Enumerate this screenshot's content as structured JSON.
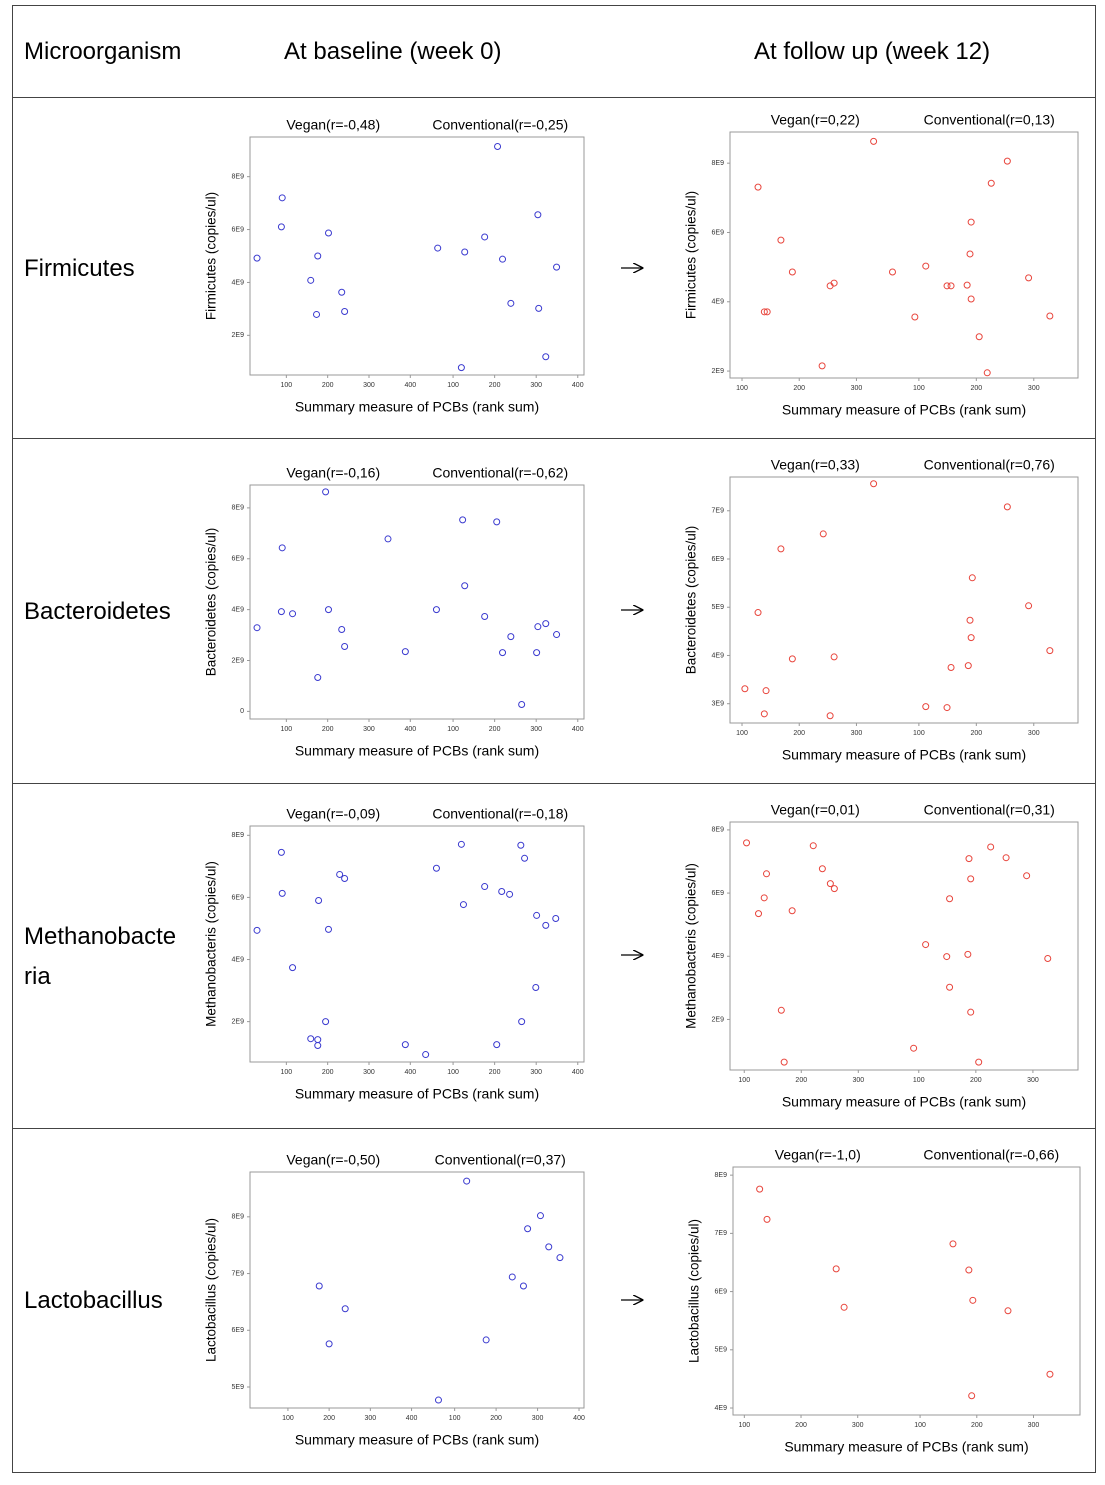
{
  "table": {
    "header": [
      "Microorganism",
      "At baseline (week 0)",
      "At follow up (week 12)"
    ],
    "rows": [
      "Firmicutes",
      "Bacteroidetes",
      "Methanobacteria",
      "Lactobacillus"
    ]
  },
  "chart_data": [
    {
      "type": "scatter",
      "ylabel": "Firmicutes (copies/ul)",
      "xlabel": "Summary measure of PCBs (rank sum)",
      "color": "#3a3acf",
      "ylim": [
        500000000.0,
        9500000000.0
      ],
      "yticks": [
        {
          "value": 2000000000.0,
          "label": "2E9"
        },
        {
          "value": 4000000000.0,
          "label": "4E9"
        },
        {
          "value": 6000000000.0,
          "label": "6E9"
        },
        {
          "value": 8000000000.0,
          "label": "8E9"
        }
      ],
      "panels": [
        {
          "title": "Vegan(r=-0,48)",
          "xlim": [
            12,
            415
          ],
          "xticks": [
            100,
            200,
            300,
            400
          ],
          "x": [
            29,
            90,
            88,
            176,
            202,
            159,
            234,
            173,
            241
          ],
          "y": [
            4920000000.0,
            7200000000.0,
            6100000000.0,
            5000000000.0,
            5870000000.0,
            4080000000.0,
            3630000000.0,
            2790000000.0,
            2900000000.0
          ]
        },
        {
          "title": "Conventional(r=-0,25)",
          "xlim": [
            12,
            415
          ],
          "xticks": [
            100,
            200,
            300,
            400
          ],
          "x": [
            63,
            207,
            128,
            176,
            219,
            304,
            349,
            239,
            306,
            120,
            323
          ],
          "y": [
            5300000000.0,
            9140000000.0,
            5150000000.0,
            5720000000.0,
            4880000000.0,
            6560000000.0,
            4580000000.0,
            3210000000.0,
            3020000000.0,
            780000000.0,
            1190000000.0
          ]
        }
      ]
    },
    {
      "type": "scatter",
      "ylabel": "Firmicutes (copies/ul)",
      "xlabel": "Summary measure of PCBs (rank sum)",
      "color": "#e8453c",
      "ylim": [
        1800000000.0,
        8900000000.0
      ],
      "yticks": [
        {
          "value": 2000000000.0,
          "label": "2E9"
        },
        {
          "value": 4000000000.0,
          "label": "4E9"
        },
        {
          "value": 6000000000.0,
          "label": "6E9"
        },
        {
          "value": 8000000000.0,
          "label": "8E9"
        }
      ],
      "panels": [
        {
          "title": "Vegan(r=0,22)",
          "xlim": [
            79,
            377
          ],
          "xticks": [
            100,
            200,
            300
          ],
          "x": [
            330,
            128,
            168,
            188,
            139,
            144,
            254,
            261,
            363,
            240
          ],
          "y": [
            8630000000.0,
            7310000000.0,
            5780000000.0,
            4860000000.0,
            3710000000.0,
            3710000000.0,
            4460000000.0,
            4540000000.0,
            4860000000.0,
            2150000000.0
          ]
        },
        {
          "title": "Conventional(r=0,13)",
          "xlim": [
            68,
            377
          ],
          "xticks": [
            100,
            200,
            300
          ],
          "x": [
            254,
            226,
            191,
            189,
            112,
            291,
            149,
            156,
            184,
            191,
            93,
            205,
            328,
            219
          ],
          "y": [
            8060000000.0,
            7420000000.0,
            6300000000.0,
            5380000000.0,
            5030000000.0,
            4690000000.0,
            4460000000.0,
            4460000000.0,
            4480000000.0,
            4080000000.0,
            3560000000.0,
            2990000000.0,
            3590000000.0,
            1950000000.0
          ]
        }
      ]
    },
    {
      "type": "scatter",
      "ylabel": "Bacteroidetes  (copies/ul)",
      "xlabel": "Summary measure of PCBs (rank sum)",
      "color": "#3a3acf",
      "ylim": [
        -300000000.0,
        8900000000.0
      ],
      "yticks": [
        0,
        {
          "value": 2000000000.0,
          "label": "2E9"
        },
        {
          "value": 4000000000.0,
          "label": "4E9"
        },
        {
          "value": 6000000000.0,
          "label": "6E9"
        },
        {
          "value": 8000000000.0,
          "label": "8E9"
        }
      ],
      "panels": [
        {
          "title": "Vegan(r=-0,16)",
          "xlim": [
            12,
            415
          ],
          "xticks": [
            100,
            200,
            300,
            400
          ],
          "x": [
            29,
            195,
            90,
            88,
            115,
            202,
            346,
            234,
            241,
            388,
            176
          ],
          "y": [
            3290000000.0,
            8630000000.0,
            6430000000.0,
            3920000000.0,
            3840000000.0,
            4000000000.0,
            6780000000.0,
            3220000000.0,
            2550000000.0,
            2350000000.0,
            1330000000.0
          ]
        },
        {
          "title": "Conventional(r=-0,62)",
          "xlim": [
            12,
            415
          ],
          "xticks": [
            100,
            200,
            300,
            400
          ],
          "x": [
            60,
            123,
            205,
            128,
            176,
            239,
            304,
            323,
            349,
            219,
            301,
            265
          ],
          "y": [
            4000000000.0,
            7530000000.0,
            7450000000.0,
            4940000000.0,
            3730000000.0,
            2940000000.0,
            3330000000.0,
            3450000000.0,
            3020000000.0,
            2310000000.0,
            2310000000.0,
            270000000.0
          ]
        }
      ]
    },
    {
      "type": "scatter",
      "ylabel": "Bacteroidetes  (copies/ul)",
      "xlabel": "Summary measure of PCBs (rank sum)",
      "color": "#e8453c",
      "ylim": [
        2600000000.0,
        7700000000.0
      ],
      "yticks": [
        {
          "value": 3000000000.0,
          "label": "3E9"
        },
        {
          "value": 4000000000.0,
          "label": "4E9"
        },
        {
          "value": 5000000000.0,
          "label": "5E9"
        },
        {
          "value": 6000000000.0,
          "label": "6E9"
        },
        {
          "value": 7000000000.0,
          "label": "7E9"
        }
      ],
      "panels": [
        {
          "title": "Vegan(r=0,33)",
          "xlim": [
            79,
            377
          ],
          "xticks": [
            100,
            200,
            300
          ],
          "x": [
            330,
            242,
            168,
            128,
            188,
            261,
            105,
            142,
            139,
            254
          ],
          "y": [
            7560000000.0,
            6520000000.0,
            6210000000.0,
            4890000000.0,
            3930000000.0,
            3970000000.0,
            3310000000.0,
            3270000000.0,
            2790000000.0,
            2750000000.0
          ]
        },
        {
          "title": "Conventional(r=0,76)",
          "xlim": [
            68,
            377
          ],
          "xticks": [
            100,
            200,
            300
          ],
          "x": [
            254,
            193,
            291,
            189,
            191,
            328,
            156,
            186,
            112,
            149
          ],
          "y": [
            7080000000.0,
            5610000000.0,
            5030000000.0,
            4730000000.0,
            4370000000.0,
            4100000000.0,
            3750000000.0,
            3790000000.0,
            2940000000.0,
            2920000000.0
          ]
        }
      ]
    },
    {
      "type": "scatter",
      "ylabel": "Methanobacteris  (copies/ul)",
      "xlabel": "Summary measure of PCBs (rank sum)",
      "color": "#3a3acf",
      "ylim": [
        700000000.0,
        8300000000.0
      ],
      "yticks": [
        {
          "value": 2000000000.0,
          "label": "2E9"
        },
        {
          "value": 4000000000.0,
          "label": "4E9"
        },
        {
          "value": 6000000000.0,
          "label": "6E9"
        },
        {
          "value": 8000000000.0,
          "label": "8E9"
        }
      ],
      "panels": [
        {
          "title": "Vegan(r=-0,09)",
          "xlim": [
            12,
            415
          ],
          "xticks": [
            100,
            200,
            300,
            400
          ],
          "x": [
            29,
            88,
            90,
            178,
            229,
            241,
            202,
            115,
            195,
            159,
            176,
            176,
            388
          ],
          "y": [
            4940000000.0,
            7450000000.0,
            6130000000.0,
            5900000000.0,
            6740000000.0,
            6610000000.0,
            4970000000.0,
            3740000000.0,
            2000000000.0,
            1450000000.0,
            1420000000.0,
            1230000000.0,
            1260000000.0
          ]
        },
        {
          "title": "Conventional(r=-0,18)",
          "xlim": [
            12,
            415
          ],
          "xticks": [
            100,
            200,
            300,
            400
          ],
          "x": [
            34,
            60,
            120,
            125,
            176,
            217,
            236,
            263,
            272,
            301,
            323,
            347,
            299,
            265,
            205
          ],
          "y": [
            940000000.0,
            6940000000.0,
            7710000000.0,
            5770000000.0,
            6350000000.0,
            6190000000.0,
            6100000000.0,
            7680000000.0,
            7260000000.0,
            5420000000.0,
            5100000000.0,
            5320000000.0,
            3100000000.0,
            2000000000.0,
            1260000000.0
          ]
        }
      ]
    },
    {
      "type": "scatter",
      "ylabel": "Methanobacteris  (copies/ul)",
      "xlabel": "Summary measure of PCBs (rank sum)",
      "color": "#e8453c",
      "ylim": [
        400000000.0,
        8250000000.0
      ],
      "yticks": [
        {
          "value": 2000000000.0,
          "label": "2E9"
        },
        {
          "value": 4000000000.0,
          "label": "4E9"
        },
        {
          "value": 6000000000.0,
          "label": "6E9"
        },
        {
          "value": 8000000000.0,
          "label": "8E9"
        }
      ],
      "panels": [
        {
          "title": "Vegan(r=0,01)",
          "xlim": [
            75,
            374
          ],
          "xticks": [
            100,
            200,
            300
          ],
          "x": [
            104,
            221,
            139,
            237,
            251,
            258,
            135,
            125,
            184,
            165,
            170
          ],
          "y": [
            7590000000.0,
            7500000000.0,
            6610000000.0,
            6770000000.0,
            6300000000.0,
            6140000000.0,
            5850000000.0,
            5350000000.0,
            5440000000.0,
            2290000000.0,
            650000000.0
          ]
        },
        {
          "title": "Conventional(r=0,31)",
          "xlim": [
            68,
            379
          ],
          "xticks": [
            100,
            200,
            300
          ],
          "x": [
            226,
            188,
            253,
            191,
            289,
            154,
            112,
            149,
            186,
            326,
            154,
            191,
            91,
            205
          ],
          "y": [
            7460000000.0,
            7090000000.0,
            7120000000.0,
            6450000000.0,
            6550000000.0,
            5820000000.0,
            4370000000.0,
            3990000000.0,
            4060000000.0,
            3930000000.0,
            3020000000.0,
            2230000000.0,
            1090000000.0,
            650000000.0
          ]
        }
      ]
    },
    {
      "type": "scatter",
      "ylabel": "Lactobacillus (copies/ul)",
      "xlabel": "Summary measure of PCBs (rank sum)",
      "color": "#3a3acf",
      "ylim": [
        4630000000.0,
        8790000000.0
      ],
      "yticks": [
        {
          "value": 5000000000.0,
          "label": "5E9"
        },
        {
          "value": 6000000000.0,
          "label": "6E9"
        },
        {
          "value": 7000000000.0,
          "label": "7E9"
        },
        {
          "value": 8000000000.0,
          "label": "8E9"
        }
      ],
      "panels": [
        {
          "title": "Vegan(r=-0,50)",
          "xlim": [
            8,
            412
          ],
          "xticks": [
            100,
            200,
            300,
            400
          ],
          "x": [
            176,
            239,
            200
          ],
          "y": [
            6780000000.0,
            6380000000.0,
            5760000000.0
          ]
        },
        {
          "title": "Conventional(r=0,37)",
          "xlim": [
            8,
            412
          ],
          "xticks": [
            100,
            200,
            300,
            400
          ],
          "x": [
            129,
            307,
            276,
            327,
            354,
            239,
            266,
            176,
            61
          ],
          "y": [
            8630000000.0,
            8020000000.0,
            7790000000.0,
            7470000000.0,
            7280000000.0,
            6940000000.0,
            6780000000.0,
            5830000000.0,
            4770000000.0
          ]
        }
      ]
    },
    {
      "type": "scatter",
      "ylabel": "Lactobacillus (copies/ul)",
      "xlabel": "Summary measure of PCBs (rank sum)",
      "color": "#e8453c",
      "ylim": [
        3880000000.0,
        8140000000.0
      ],
      "yticks": [
        {
          "value": 4000000000.0,
          "label": "4E9"
        },
        {
          "value": 5000000000.0,
          "label": "5E9"
        },
        {
          "value": 6000000000.0,
          "label": "6E9"
        },
        {
          "value": 7000000000.0,
          "label": "7E9"
        },
        {
          "value": 8000000000.0,
          "label": "8E9"
        }
      ],
      "panels": [
        {
          "title": "Vegan(r=-1,0)",
          "xlim": [
            80,
            379
          ],
          "xticks": [
            100,
            200,
            300
          ],
          "x": [
            127,
            140,
            262,
            276
          ],
          "y": [
            7760000000.0,
            7240000000.0,
            6390000000.0,
            5730000000.0
          ]
        },
        {
          "title": "Conventional(r=-0,66)",
          "xlim": [
            69,
            382
          ],
          "xticks": [
            100,
            200,
            300
          ],
          "x": [
            158,
            186,
            193,
            255,
            329,
            191
          ],
          "y": [
            6820000000.0,
            6370000000.0,
            5850000000.0,
            5670000000.0,
            4580000000.0,
            4210000000.0
          ]
        }
      ]
    }
  ]
}
